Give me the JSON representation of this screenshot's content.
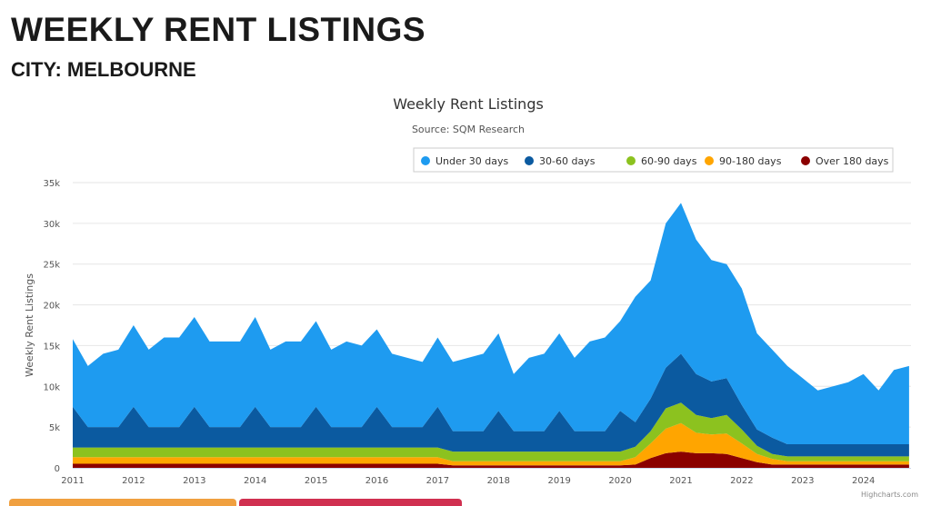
{
  "page": {
    "title": "WEEKLY RENT LISTINGS",
    "subtitle": "CITY: MELBOURNE"
  },
  "chart_data": {
    "type": "area",
    "stacked": true,
    "title": "Weekly Rent Listings",
    "subtitle": "Source: SQM Research",
    "ylabel": "Weekly Rent Listings",
    "xlabel": "",
    "ylim": [
      0,
      35000
    ],
    "yticks": [
      {
        "v": 0,
        "label": "0"
      },
      {
        "v": 5000,
        "label": "5k"
      },
      {
        "v": 10000,
        "label": "10k"
      },
      {
        "v": 15000,
        "label": "15k"
      },
      {
        "v": 20000,
        "label": "20k"
      },
      {
        "v": 25000,
        "label": "25k"
      },
      {
        "v": 30000,
        "label": "30k"
      },
      {
        "v": 35000,
        "label": "35k"
      }
    ],
    "xticks": [
      "2011",
      "2012",
      "2013",
      "2014",
      "2015",
      "2016",
      "2017",
      "2018",
      "2019",
      "2020",
      "2021",
      "2022",
      "2023",
      "2024"
    ],
    "x_start": 2011,
    "x_step": 0.25,
    "legend_position": "top-right",
    "credits": "Highcharts.com",
    "series": [
      {
        "name": "Over 180 days",
        "color": "#8b0000",
        "values": [
          500,
          500,
          500,
          500,
          500,
          500,
          500,
          500,
          500,
          500,
          500,
          500,
          500,
          500,
          500,
          500,
          500,
          500,
          500,
          500,
          500,
          500,
          500,
          500,
          500,
          300,
          300,
          300,
          300,
          300,
          300,
          300,
          300,
          300,
          300,
          300,
          300,
          400,
          1200,
          1800,
          2000,
          1800,
          1800,
          1700,
          1200,
          700,
          400,
          400,
          400,
          400,
          400,
          400,
          400,
          400,
          400,
          400
        ]
      },
      {
        "name": "90-180 days",
        "color": "#ffa500",
        "values": [
          800,
          800,
          800,
          800,
          800,
          800,
          800,
          800,
          800,
          800,
          800,
          800,
          800,
          800,
          800,
          800,
          800,
          800,
          800,
          800,
          800,
          800,
          800,
          800,
          800,
          500,
          500,
          500,
          500,
          500,
          500,
          500,
          500,
          500,
          500,
          500,
          500,
          900,
          1800,
          3000,
          3500,
          2500,
          2300,
          2500,
          1800,
          1000,
          700,
          400,
          400,
          400,
          400,
          400,
          400,
          400,
          400,
          400
        ]
      },
      {
        "name": "60-90 days",
        "color": "#8cc21f",
        "values": [
          1200,
          1200,
          1200,
          1200,
          1200,
          1200,
          1200,
          1200,
          1200,
          1200,
          1200,
          1200,
          1200,
          1200,
          1200,
          1200,
          1200,
          1200,
          1200,
          1200,
          1200,
          1200,
          1200,
          1200,
          1200,
          1200,
          1200,
          1200,
          1200,
          1200,
          1200,
          1200,
          1200,
          1200,
          1200,
          1200,
          1200,
          1300,
          1500,
          2500,
          2500,
          2200,
          2000,
          2300,
          1700,
          1000,
          600,
          600,
          600,
          600,
          600,
          600,
          600,
          600,
          600,
          600
        ]
      },
      {
        "name": "30-60 days",
        "color": "#0b5aa0",
        "values": [
          5000,
          2500,
          2500,
          2500,
          5000,
          2500,
          2500,
          2500,
          5000,
          2500,
          2500,
          2500,
          5000,
          2500,
          2500,
          2500,
          5000,
          2500,
          2500,
          2500,
          5000,
          2500,
          2500,
          2500,
          5000,
          2500,
          2500,
          2500,
          5000,
          2500,
          2500,
          2500,
          5000,
          2500,
          2500,
          2500,
          5000,
          3000,
          4000,
          5000,
          6000,
          5000,
          4500,
          4500,
          3000,
          2000,
          2000,
          1500,
          1500,
          1500,
          1500,
          1500,
          1500,
          1500,
          1500,
          1500
        ]
      },
      {
        "name": "Under 30 days",
        "color": "#1e9bf0",
        "values": [
          8300,
          7500,
          9000,
          9500,
          10000,
          9500,
          11000,
          11000,
          11000,
          10500,
          10500,
          10500,
          11000,
          9500,
          10500,
          10500,
          10500,
          9500,
          10500,
          10000,
          9500,
          9000,
          8500,
          8000,
          8500,
          8500,
          9000,
          9500,
          9500,
          7000,
          9000,
          9500,
          9500,
          9000,
          11000,
          11500,
          11000,
          15400,
          14500,
          17700,
          18500,
          16500,
          14900,
          14000,
          14300,
          11800,
          10800,
          9600,
          8100,
          6600,
          7100,
          7600,
          8600,
          6600,
          9100,
          9600
        ]
      }
    ],
    "legend_order": [
      "Under 30 days",
      "30-60 days",
      "60-90 days",
      "90-180 days",
      "Over 180 days"
    ]
  },
  "tabs": {
    "colors": [
      "#f0a040",
      "#d03050"
    ]
  }
}
